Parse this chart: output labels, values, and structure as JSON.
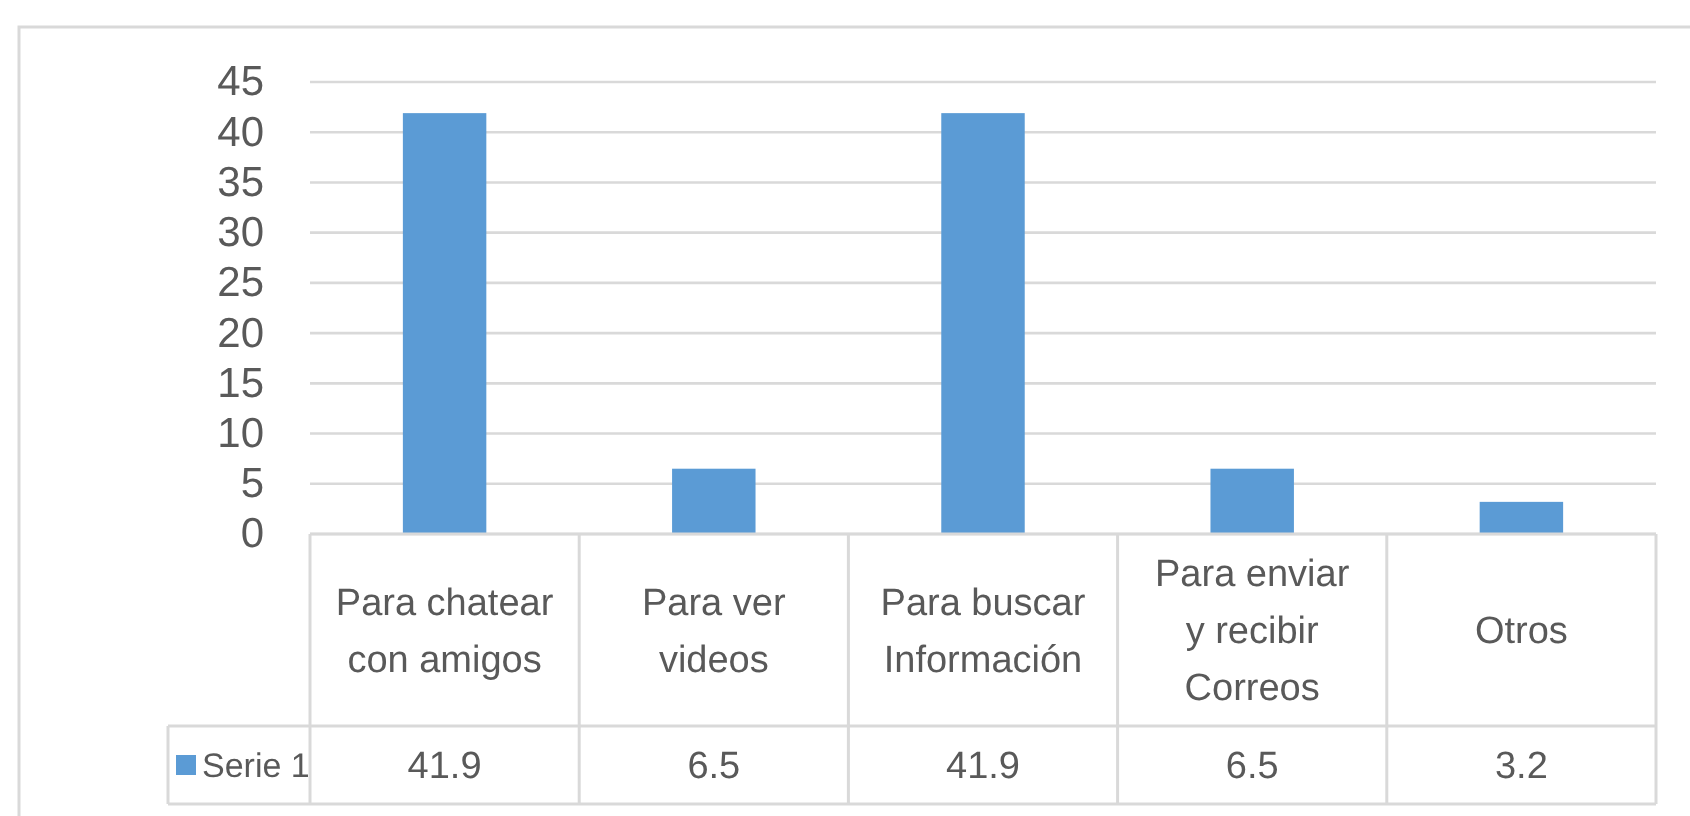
{
  "chart_data": {
    "type": "bar",
    "categories": [
      "Para chatear con amigos",
      "Para ver videos",
      "Para buscar Información",
      "Para enviar y recibir Correos",
      "Otros"
    ],
    "series": [
      {
        "name": "Serie 1",
        "color": "#5b9bd5",
        "values": [
          41.9,
          6.5,
          41.9,
          6.5,
          3.2
        ]
      }
    ],
    "ylim": [
      0,
      45
    ],
    "yticks": [
      0,
      5,
      10,
      15,
      20,
      25,
      30,
      35,
      40,
      45
    ],
    "grid": "y",
    "legend": "bottom",
    "data_labels": true
  }
}
